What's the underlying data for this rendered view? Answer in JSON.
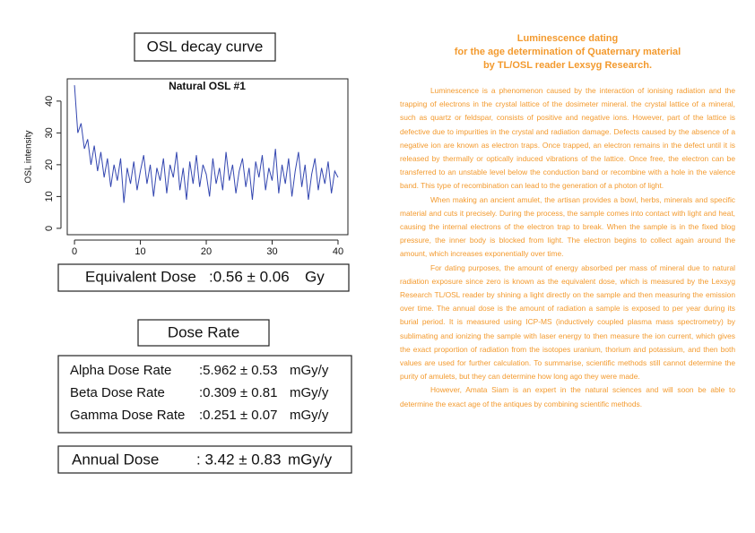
{
  "chart_data": {
    "type": "line",
    "header": "OSL decay curve",
    "title": "Natural OSL #1",
    "ylabel": "OSL intensity",
    "color": "#3346b0",
    "x": [
      0,
      0.5,
      1,
      1.5,
      2,
      2.5,
      3,
      3.5,
      4,
      4.5,
      5,
      5.5,
      6,
      6.5,
      7,
      7.5,
      8,
      8.5,
      9,
      9.5,
      10,
      10.5,
      11,
      11.5,
      12,
      12.5,
      13,
      13.5,
      14,
      14.5,
      15,
      15.5,
      16,
      16.5,
      17,
      17.5,
      18,
      18.5,
      19,
      19.5,
      20,
      20.5,
      21,
      21.5,
      22,
      22.5,
      23,
      23.5,
      24,
      24.5,
      25,
      25.5,
      26,
      26.5,
      27,
      27.5,
      28,
      28.5,
      29,
      29.5,
      30,
      30.5,
      31,
      31.5,
      32,
      32.5,
      33,
      33.5,
      34,
      34.5,
      35,
      35.5,
      36,
      36.5,
      37,
      37.5,
      38,
      38.5,
      39,
      39.5,
      40
    ],
    "values": [
      45,
      30,
      33,
      25,
      28,
      20,
      26,
      18,
      24,
      16,
      22,
      13,
      20,
      15,
      22,
      8,
      19,
      14,
      21,
      12,
      18,
      23,
      14,
      20,
      10,
      19,
      15,
      22,
      11,
      20,
      16,
      24,
      12,
      19,
      9,
      21,
      14,
      23,
      13,
      20,
      17,
      10,
      22,
      14,
      19,
      12,
      24,
      15,
      20,
      11,
      18,
      22,
      13,
      19,
      9,
      21,
      16,
      23,
      12,
      19,
      15,
      25,
      11,
      20,
      14,
      22,
      10,
      18,
      24,
      13,
      20,
      9,
      17,
      22,
      12,
      19,
      14,
      21,
      11,
      18,
      16
    ],
    "xlim": [
      -1.1,
      41.5
    ],
    "ylim": [
      -2,
      47
    ],
    "xticks": [
      0,
      10,
      20,
      30,
      40
    ],
    "yticks": [
      0,
      10,
      20,
      30,
      40
    ]
  },
  "equivalent_dose": {
    "label": "Equivalent Dose",
    "value": ":0.56 ± 0.06",
    "unit": "Gy"
  },
  "dose_rate": {
    "title": "Dose Rate",
    "rows": [
      {
        "label": "Alpha Dose Rate",
        "value": ":5.962 ± 0.53",
        "unit": "mGy/y"
      },
      {
        "label": "Beta Dose Rate",
        "value": ":0.309 ± 0.81",
        "unit": "mGy/y"
      },
      {
        "label": "Gamma Dose Rate",
        "value": ":0.251 ± 0.07",
        "unit": "mGy/y"
      }
    ]
  },
  "annual_dose": {
    "label": "Annual Dose",
    "value": ": 3.42 ± 0.83",
    "unit": "mGy/y"
  },
  "article": {
    "title": [
      "Luminescence dating",
      "for the age determination of Quaternary material",
      "by TL/OSL reader Lexsyg Research."
    ],
    "paragraphs": [
      "Luminescence is a phenomenon caused by the interaction of ionising radiation and the trapping of electrons in the crystal lattice of the dosimeter mineral. the crystal lattice of a mineral, such as quartz or feldspar, consists of positive and negative ions. However, part of the lattice is defective due to impurities in the crystal and radiation damage. Defects caused by the absence of a negative ion are known as electron traps. Once trapped, an electron remains in the defect until it is released by thermally or optically induced vibrations of the lattice. Once free, the electron can be transferred to an unstable level below the conduction band or recombine with a hole in the valence band. This type of recombination can lead to the generation of a photon of light.",
      "When making an ancient amulet, the artisan provides a bowl, herbs, minerals and specific material and cuts it precisely. During the process, the sample comes into contact with light and heat, causing the internal electrons of the electron trap to break. When the sample is in the fixed blog pressure, the inner body is blocked from light. The electron begins to collect again around the amount, which increases exponentially over time.",
      "For dating purposes, the amount of energy absorbed per mass of mineral due to natural radiation exposure since zero is known as the equivalent dose, which is measured by the Lexsyg Research TL/OSL reader by shining a light directly on the sample and then measuring the emission over time. The annual dose is the amount of radiation a sample is exposed to per year during its burial period. It is measured using ICP-MS (inductively coupled plasma mass spectrometry) by sublimating and ionizing the sample with laser energy to then measure the ion current, which gives the exact proportion of radiation from the isotopes uranium, thorium and potassium, and then both values are used for further calculation. To summarise, scientific methods still cannot determine the purity of amulets, but they can determine how long ago they were made.",
      "However, Amata Siam is an expert in the natural sciences and will soon be able to determine the exact age of the antiques by combining scientific methods."
    ]
  }
}
